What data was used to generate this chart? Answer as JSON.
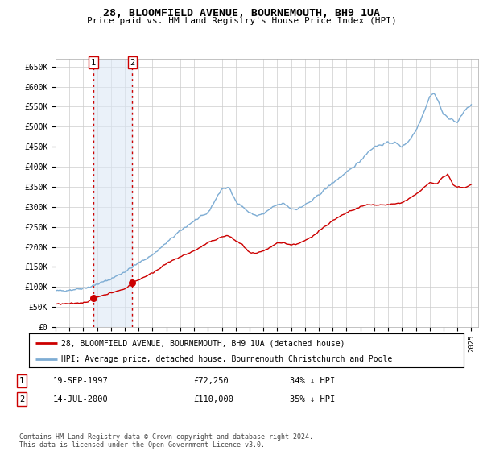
{
  "title": "28, BLOOMFIELD AVENUE, BOURNEMOUTH, BH9 1UA",
  "subtitle": "Price paid vs. HM Land Registry's House Price Index (HPI)",
  "sale1_date": 1997.72,
  "sale1_price": 72250,
  "sale2_date": 2000.54,
  "sale2_price": 110000,
  "ylim": [
    0,
    670000
  ],
  "xlim": [
    1995.0,
    2025.5
  ],
  "yticks": [
    0,
    50000,
    100000,
    150000,
    200000,
    250000,
    300000,
    350000,
    400000,
    450000,
    500000,
    550000,
    600000,
    650000
  ],
  "ytick_labels": [
    "£0",
    "£50K",
    "£100K",
    "£150K",
    "£200K",
    "£250K",
    "£300K",
    "£350K",
    "£400K",
    "£450K",
    "£500K",
    "£550K",
    "£600K",
    "£650K"
  ],
  "xtick_years": [
    1995,
    1996,
    1997,
    1998,
    1999,
    2000,
    2001,
    2002,
    2003,
    2004,
    2005,
    2006,
    2007,
    2008,
    2009,
    2010,
    2011,
    2012,
    2013,
    2014,
    2015,
    2016,
    2017,
    2018,
    2019,
    2020,
    2021,
    2022,
    2023,
    2024,
    2025
  ],
  "legend_line1": "28, BLOOMFIELD AVENUE, BOURNEMOUTH, BH9 1UA (detached house)",
  "legend_line2": "HPI: Average price, detached house, Bournemouth Christchurch and Poole",
  "table_row1": [
    "1",
    "19-SEP-1997",
    "£72,250",
    "34% ↓ HPI"
  ],
  "table_row2": [
    "2",
    "14-JUL-2000",
    "£110,000",
    "35% ↓ HPI"
  ],
  "footnote": "Contains HM Land Registry data © Crown copyright and database right 2024.\nThis data is licensed under the Open Government Licence v3.0.",
  "hpi_color": "#7eadd4",
  "price_color": "#cc0000",
  "vline_color": "#cc0000",
  "shade_color": "#dce8f5",
  "grid_color": "#cccccc",
  "background_color": "#ffffff",
  "hpi_anchors_x": [
    1995.0,
    1996.0,
    1997.0,
    1997.5,
    1998.0,
    1999.0,
    2000.0,
    2001.0,
    2002.0,
    2003.0,
    2004.0,
    2005.0,
    2006.0,
    2007.0,
    2007.5,
    2008.0,
    2008.5,
    2009.0,
    2009.5,
    2010.0,
    2010.5,
    2011.0,
    2011.5,
    2012.0,
    2012.5,
    2013.0,
    2013.5,
    2014.0,
    2015.0,
    2016.0,
    2017.0,
    2017.5,
    2018.0,
    2018.5,
    2019.0,
    2019.5,
    2020.0,
    2020.5,
    2021.0,
    2021.5,
    2022.0,
    2022.3,
    2022.6,
    2023.0,
    2023.5,
    2024.0,
    2024.5,
    2025.0
  ],
  "hpi_anchors_y": [
    90000,
    92000,
    97000,
    100000,
    107000,
    120000,
    138000,
    160000,
    180000,
    210000,
    240000,
    265000,
    285000,
    345000,
    348000,
    315000,
    300000,
    285000,
    278000,
    282000,
    295000,
    305000,
    308000,
    295000,
    295000,
    305000,
    315000,
    330000,
    360000,
    385000,
    415000,
    435000,
    450000,
    455000,
    460000,
    460000,
    450000,
    465000,
    490000,
    530000,
    575000,
    585000,
    565000,
    530000,
    520000,
    510000,
    540000,
    555000
  ],
  "price_anchors_x": [
    1995.0,
    1996.0,
    1997.0,
    1997.5,
    1997.72,
    1998.0,
    1999.0,
    2000.0,
    2000.54,
    2001.0,
    2002.0,
    2003.0,
    2004.0,
    2005.0,
    2006.0,
    2007.0,
    2007.5,
    2008.0,
    2008.5,
    2009.0,
    2009.5,
    2010.0,
    2010.5,
    2011.0,
    2011.5,
    2012.0,
    2012.5,
    2013.0,
    2013.5,
    2014.0,
    2015.0,
    2016.0,
    2017.0,
    2017.5,
    2018.0,
    2019.0,
    2020.0,
    2021.0,
    2021.5,
    2022.0,
    2022.5,
    2023.0,
    2023.3,
    2023.7,
    2024.0,
    2024.5,
    2025.0
  ],
  "price_anchors_y": [
    57000,
    58000,
    61000,
    65000,
    72250,
    75000,
    85000,
    95000,
    110000,
    118000,
    135000,
    158000,
    175000,
    190000,
    210000,
    225000,
    228000,
    215000,
    205000,
    185000,
    183000,
    190000,
    198000,
    210000,
    210000,
    205000,
    208000,
    215000,
    225000,
    240000,
    265000,
    285000,
    300000,
    305000,
    305000,
    305000,
    310000,
    330000,
    345000,
    360000,
    358000,
    375000,
    380000,
    355000,
    350000,
    348000,
    355000
  ]
}
